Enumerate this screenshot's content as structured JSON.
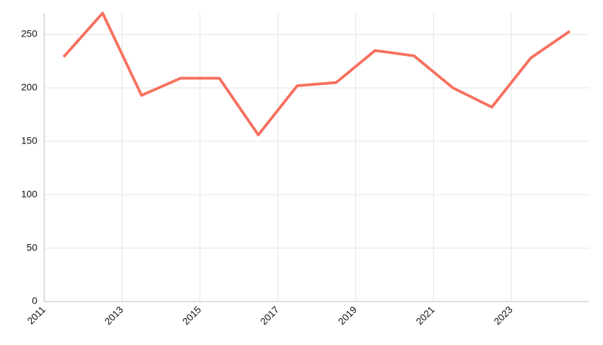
{
  "chart_data": {
    "type": "line",
    "x": [
      2011.5,
      2012.5,
      2013.5,
      2014.5,
      2015.5,
      2016.5,
      2017.5,
      2018.5,
      2019.5,
      2020.5,
      2021.5,
      2022.5,
      2023.5,
      2024.5
    ],
    "series": [
      {
        "color": "#f7705f",
        "values": [
          229,
          270,
          193,
          209,
          209,
          156,
          202,
          205,
          235,
          230,
          200,
          182,
          228,
          253
        ]
      }
    ],
    "xlim": [
      2011,
      2025
    ],
    "xticks": [
      2011,
      2013,
      2015,
      2017,
      2019,
      2021,
      2023
    ],
    "ylim": [
      0,
      270
    ],
    "yticks": [
      0,
      50,
      100,
      150,
      200,
      250
    ],
    "grid": true
  }
}
